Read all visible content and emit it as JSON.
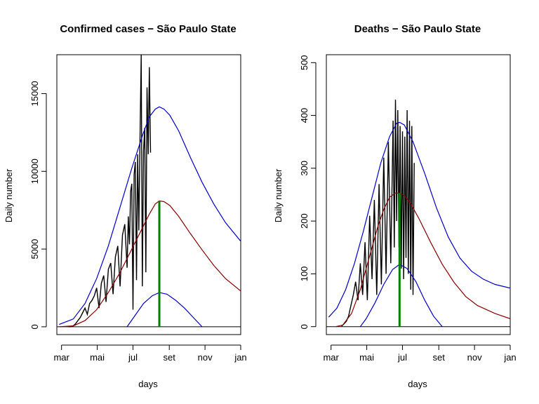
{
  "chart_data": [
    {
      "type": "line",
      "title": "Confirmed cases − São Paulo State",
      "xlabel": "days",
      "ylabel": "Daily number",
      "x_ticks": [
        "mar",
        "mai",
        "jul",
        "set",
        "nov",
        "jan"
      ],
      "x_tick_days": [
        0,
        61,
        122,
        184,
        245,
        306
      ],
      "y_ticks": [
        0,
        5000,
        10000,
        15000
      ],
      "xlim": [
        -8,
        306
      ],
      "ylim": [
        -500,
        17500
      ],
      "grid": false,
      "vertical_marker": {
        "day": 167,
        "color": "#008000"
      },
      "series": [
        {
          "role": "observed",
          "color": "#000000",
          "x": [
            12,
            16,
            20,
            24,
            28,
            32,
            36,
            40,
            44,
            48,
            52,
            56,
            60,
            64,
            68,
            72,
            76,
            80,
            84,
            88,
            92,
            96,
            100,
            104,
            108,
            112,
            114,
            116,
            118,
            120,
            122,
            124,
            126,
            128,
            130,
            132,
            134,
            136,
            138,
            140,
            142,
            144,
            146,
            148,
            150,
            152
          ],
          "values": [
            0,
            20,
            60,
            200,
            400,
            600,
            900,
            1200,
            800,
            1500,
            1700,
            2000,
            2500,
            1200,
            2800,
            3300,
            1600,
            3700,
            4100,
            2100,
            4500,
            5200,
            2600,
            5900,
            6600,
            3800,
            7100,
            5300,
            8700,
            9200,
            1100,
            9800,
            10600,
            3000,
            11100,
            6200,
            12100,
            17500,
            2600,
            11300,
            12800,
            3500,
            15400,
            11100,
            16700,
            11200
          ]
        },
        {
          "role": "fitted",
          "color": "#8b0000",
          "x": [
            -4,
            20,
            40,
            60,
            80,
            100,
            120,
            140,
            150,
            160,
            167,
            175,
            185,
            200,
            220,
            240,
            260,
            280,
            306
          ],
          "values": [
            0,
            60,
            400,
            1100,
            2200,
            3500,
            5000,
            6500,
            7250,
            7900,
            8100,
            8050,
            7800,
            7100,
            6000,
            4950,
            3950,
            3100,
            2300
          ]
        },
        {
          "role": "upper",
          "color": "#0000cd",
          "x": [
            -4,
            20,
            40,
            60,
            80,
            100,
            120,
            140,
            150,
            160,
            167,
            175,
            185,
            200,
            220,
            240,
            260,
            280,
            306
          ],
          "values": [
            150,
            500,
            1500,
            3100,
            5200,
            7700,
            10200,
            12500,
            13500,
            14000,
            14150,
            14000,
            13600,
            12600,
            10900,
            9300,
            7900,
            6700,
            5500
          ]
        },
        {
          "role": "lower",
          "color": "#0000cd",
          "x": [
            112,
            125,
            140,
            155,
            167,
            180,
            195,
            210,
            225,
            240
          ],
          "values": [
            0,
            700,
            1500,
            2000,
            2200,
            2100,
            1700,
            1200,
            600,
            0
          ]
        }
      ]
    },
    {
      "type": "line",
      "title": "Deaths − São Paulo State",
      "xlabel": "days",
      "ylabel": "Daily number",
      "x_ticks": [
        "mar",
        "mai",
        "jul",
        "set",
        "nov",
        "jan"
      ],
      "x_tick_days": [
        0,
        61,
        122,
        184,
        245,
        306
      ],
      "y_ticks": [
        0,
        100,
        200,
        300,
        400,
        500
      ],
      "xlim": [
        -8,
        306
      ],
      "ylim": [
        -15,
        515
      ],
      "grid": false,
      "vertical_marker": {
        "day": 117,
        "color": "#008000"
      },
      "series": [
        {
          "role": "observed",
          "color": "#000000",
          "x": [
            18,
            22,
            26,
            30,
            34,
            38,
            42,
            46,
            50,
            54,
            58,
            62,
            66,
            70,
            74,
            78,
            82,
            86,
            90,
            94,
            98,
            102,
            106,
            108,
            110,
            112,
            114,
            116,
            118,
            120,
            122,
            124,
            126,
            128,
            130,
            132,
            134,
            136,
            138,
            140,
            142
          ],
          "values": [
            1,
            5,
            10,
            20,
            40,
            60,
            85,
            50,
            120,
            60,
            160,
            50,
            210,
            90,
            240,
            60,
            270,
            80,
            320,
            100,
            350,
            120,
            390,
            150,
            430,
            200,
            410,
            150,
            380,
            110,
            370,
            90,
            360,
            130,
            410,
            100,
            390,
            70,
            380,
            60,
            310
          ]
        },
        {
          "role": "fitted",
          "color": "#8b0000",
          "x": [
            8,
            20,
            35,
            50,
            60,
            70,
            80,
            90,
            100,
            110,
            117,
            125,
            135,
            150,
            170,
            190,
            210,
            230,
            250,
            280,
            306
          ],
          "values": [
            0,
            3,
            25,
            70,
            110,
            150,
            190,
            222,
            245,
            253,
            253,
            248,
            235,
            205,
            160,
            118,
            84,
            57,
            40,
            25,
            15
          ]
        },
        {
          "role": "upper",
          "color": "#0000cd",
          "x": [
            -4,
            10,
            25,
            40,
            55,
            70,
            85,
            100,
            112,
            117,
            125,
            140,
            160,
            180,
            200,
            220,
            240,
            260,
            280,
            306
          ],
          "values": [
            18,
            35,
            70,
            120,
            180,
            245,
            310,
            360,
            385,
            387,
            382,
            350,
            290,
            225,
            170,
            130,
            105,
            90,
            80,
            73
          ]
        },
        {
          "role": "lower",
          "color": "#0000cd",
          "x": [
            50,
            60,
            75,
            90,
            105,
            117,
            130,
            145,
            160,
            175,
            190
          ],
          "values": [
            0,
            15,
            45,
            80,
            108,
            118,
            110,
            85,
            50,
            20,
            0
          ]
        }
      ]
    }
  ]
}
